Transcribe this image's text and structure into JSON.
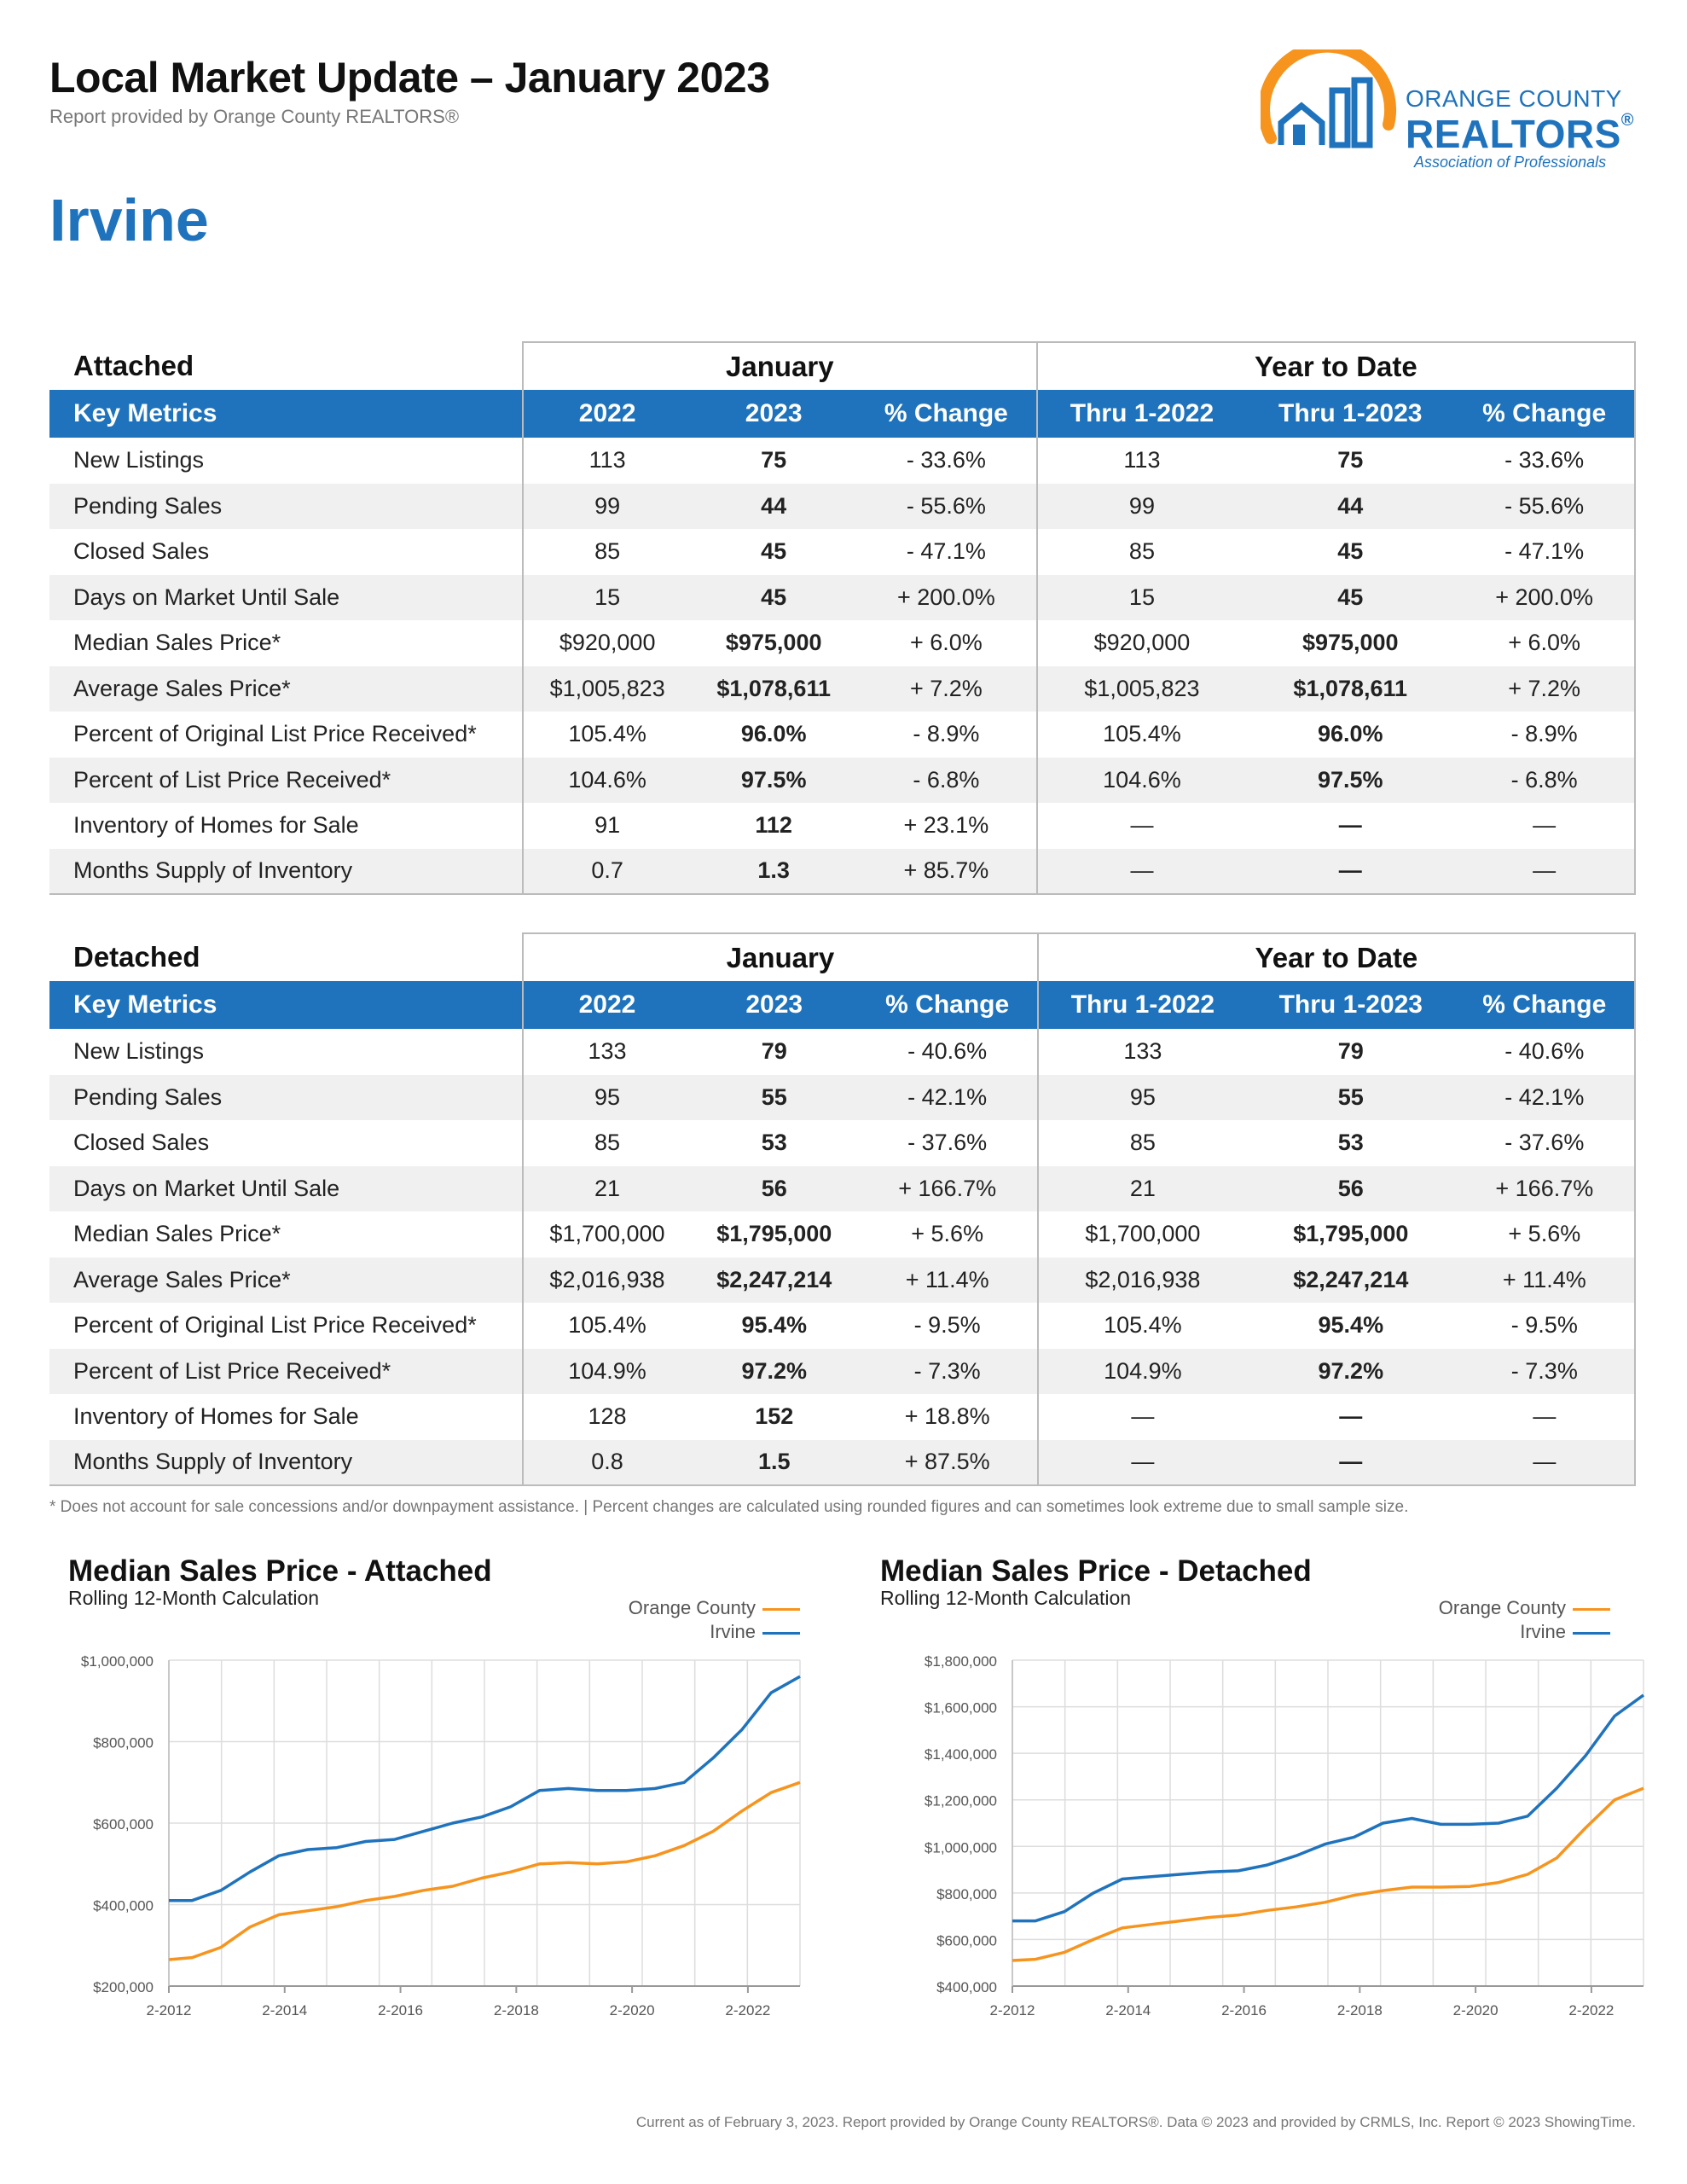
{
  "header": {
    "title": "Local Market Update – January 2023",
    "subtitle": "Report provided by Orange County REALTORS®",
    "city": "Irvine"
  },
  "logo": {
    "line1": "ORANGE COUNTY",
    "line2": "REALTORS",
    "reg": "®",
    "line3": "Association of Professionals",
    "colors": {
      "arc": "#f7941d",
      "text": "#1f73bd"
    }
  },
  "colors": {
    "accent": "#1f73bd",
    "orange_county": "#f7941d",
    "irvine": "#1f73bd",
    "row_shade": "#f0f0f0"
  },
  "tables": [
    {
      "section": "Attached",
      "group1": "January",
      "group2": "Year to Date",
      "headers": [
        "Key Metrics",
        "2022",
        "2023",
        "% Change",
        "Thru 1-2022",
        "Thru 1-2023",
        "% Change"
      ],
      "rows": [
        [
          "New Listings",
          "113",
          "75",
          "- 33.6%",
          "113",
          "75",
          "- 33.6%"
        ],
        [
          "Pending Sales",
          "99",
          "44",
          "- 55.6%",
          "99",
          "44",
          "- 55.6%"
        ],
        [
          "Closed Sales",
          "85",
          "45",
          "- 47.1%",
          "85",
          "45",
          "- 47.1%"
        ],
        [
          "Days on Market Until Sale",
          "15",
          "45",
          "+ 200.0%",
          "15",
          "45",
          "+ 200.0%"
        ],
        [
          "Median Sales Price*",
          "$920,000",
          "$975,000",
          "+ 6.0%",
          "$920,000",
          "$975,000",
          "+ 6.0%"
        ],
        [
          "Average Sales Price*",
          "$1,005,823",
          "$1,078,611",
          "+ 7.2%",
          "$1,005,823",
          "$1,078,611",
          "+ 7.2%"
        ],
        [
          "Percent of Original List Price Received*",
          "105.4%",
          "96.0%",
          "- 8.9%",
          "105.4%",
          "96.0%",
          "- 8.9%"
        ],
        [
          "Percent of List Price Received*",
          "104.6%",
          "97.5%",
          "- 6.8%",
          "104.6%",
          "97.5%",
          "- 6.8%"
        ],
        [
          "Inventory of Homes for Sale",
          "91",
          "112",
          "+ 23.1%",
          "—",
          "—",
          "—"
        ],
        [
          "Months Supply of Inventory",
          "0.7",
          "1.3",
          "+ 85.7%",
          "—",
          "—",
          "—"
        ]
      ]
    },
    {
      "section": "Detached",
      "group1": "January",
      "group2": "Year to Date",
      "headers": [
        "Key Metrics",
        "2022",
        "2023",
        "% Change",
        "Thru 1-2022",
        "Thru 1-2023",
        "% Change"
      ],
      "rows": [
        [
          "New Listings",
          "133",
          "79",
          "- 40.6%",
          "133",
          "79",
          "- 40.6%"
        ],
        [
          "Pending Sales",
          "95",
          "55",
          "- 42.1%",
          "95",
          "55",
          "- 42.1%"
        ],
        [
          "Closed Sales",
          "85",
          "53",
          "- 37.6%",
          "85",
          "53",
          "- 37.6%"
        ],
        [
          "Days on Market Until Sale",
          "21",
          "56",
          "+ 166.7%",
          "21",
          "56",
          "+ 166.7%"
        ],
        [
          "Median Sales Price*",
          "$1,700,000",
          "$1,795,000",
          "+ 5.6%",
          "$1,700,000",
          "$1,795,000",
          "+ 5.6%"
        ],
        [
          "Average Sales Price*",
          "$2,016,938",
          "$2,247,214",
          "+ 11.4%",
          "$2,016,938",
          "$2,247,214",
          "+ 11.4%"
        ],
        [
          "Percent of Original List Price Received*",
          "105.4%",
          "95.4%",
          "- 9.5%",
          "105.4%",
          "95.4%",
          "- 9.5%"
        ],
        [
          "Percent of List Price Received*",
          "104.9%",
          "97.2%",
          "- 7.3%",
          "104.9%",
          "97.2%",
          "- 7.3%"
        ],
        [
          "Inventory of Homes for Sale",
          "128",
          "152",
          "+ 18.8%",
          "—",
          "—",
          "—"
        ],
        [
          "Months Supply of Inventory",
          "0.8",
          "1.5",
          "+ 87.5%",
          "—",
          "—",
          "—"
        ]
      ]
    }
  ],
  "note": "* Does not account for sale concessions and/or downpayment assistance.  |  Percent changes are calculated using rounded figures and can sometimes look extreme due to small sample size.",
  "footer": "Current as of February 3, 2023. Report provided by Orange County REALTORS®. Data © 2023 and provided by CRMLS, Inc. Report © 2023 ShowingTime.",
  "chart_data": [
    {
      "type": "line",
      "title": "Median Sales Price - Attached",
      "subtitle": "Rolling 12-Month Calculation",
      "x_ticks": [
        "2-2012",
        "2-2014",
        "2-2016",
        "2-2018",
        "2-2020",
        "2-2022"
      ],
      "x": [
        2012.1,
        2012.5,
        2013.0,
        2013.5,
        2014.0,
        2014.5,
        2015.0,
        2015.5,
        2016.0,
        2016.5,
        2017.0,
        2017.5,
        2018.0,
        2018.5,
        2019.0,
        2019.5,
        2020.0,
        2020.5,
        2021.0,
        2021.5,
        2022.0,
        2022.5,
        2023.0
      ],
      "xlim": [
        2012.1,
        2023.0
      ],
      "ylim": [
        200000,
        1000000
      ],
      "y_ticks": [
        "$200,000",
        "$400,000",
        "$600,000",
        "$800,000",
        "$1,000,000"
      ],
      "y_tick_values": [
        200000,
        400000,
        600000,
        800000,
        1000000
      ],
      "legend": "top-right",
      "grid": true,
      "series": [
        {
          "name": "Orange County",
          "color": "#f7941d",
          "values": [
            265000,
            270000,
            295000,
            345000,
            375000,
            385000,
            395000,
            410000,
            420000,
            435000,
            445000,
            465000,
            480000,
            500000,
            503000,
            500000,
            505000,
            520000,
            545000,
            580000,
            630000,
            675000,
            700000
          ]
        },
        {
          "name": "Irvine",
          "color": "#1f73bd",
          "values": [
            410000,
            410000,
            435000,
            480000,
            520000,
            535000,
            540000,
            555000,
            560000,
            580000,
            600000,
            615000,
            640000,
            680000,
            685000,
            680000,
            680000,
            685000,
            700000,
            760000,
            830000,
            920000,
            960000
          ]
        }
      ]
    },
    {
      "type": "line",
      "title": "Median Sales Price - Detached",
      "subtitle": "Rolling 12-Month Calculation",
      "x_ticks": [
        "2-2012",
        "2-2014",
        "2-2016",
        "2-2018",
        "2-2020",
        "2-2022"
      ],
      "x": [
        2012.1,
        2012.5,
        2013.0,
        2013.5,
        2014.0,
        2014.5,
        2015.0,
        2015.5,
        2016.0,
        2016.5,
        2017.0,
        2017.5,
        2018.0,
        2018.5,
        2019.0,
        2019.5,
        2020.0,
        2020.5,
        2021.0,
        2021.5,
        2022.0,
        2022.5,
        2023.0
      ],
      "xlim": [
        2012.1,
        2023.0
      ],
      "ylim": [
        400000,
        1800000
      ],
      "y_ticks": [
        "$400,000",
        "$600,000",
        "$800,000",
        "$1,000,000",
        "$1,200,000",
        "$1,400,000",
        "$1,600,000",
        "$1,800,000"
      ],
      "y_tick_values": [
        400000,
        600000,
        800000,
        1000000,
        1200000,
        1400000,
        1600000,
        1800000
      ],
      "legend": "top-right",
      "grid": true,
      "series": [
        {
          "name": "Orange County",
          "color": "#f7941d",
          "values": [
            510000,
            515000,
            545000,
            600000,
            650000,
            665000,
            680000,
            695000,
            705000,
            725000,
            740000,
            760000,
            790000,
            810000,
            825000,
            825000,
            828000,
            845000,
            880000,
            950000,
            1080000,
            1200000,
            1250000
          ]
        },
        {
          "name": "Irvine",
          "color": "#1f73bd",
          "values": [
            680000,
            680000,
            720000,
            800000,
            860000,
            870000,
            880000,
            890000,
            895000,
            920000,
            960000,
            1010000,
            1040000,
            1100000,
            1120000,
            1095000,
            1095000,
            1100000,
            1130000,
            1250000,
            1390000,
            1560000,
            1650000
          ]
        }
      ]
    }
  ]
}
